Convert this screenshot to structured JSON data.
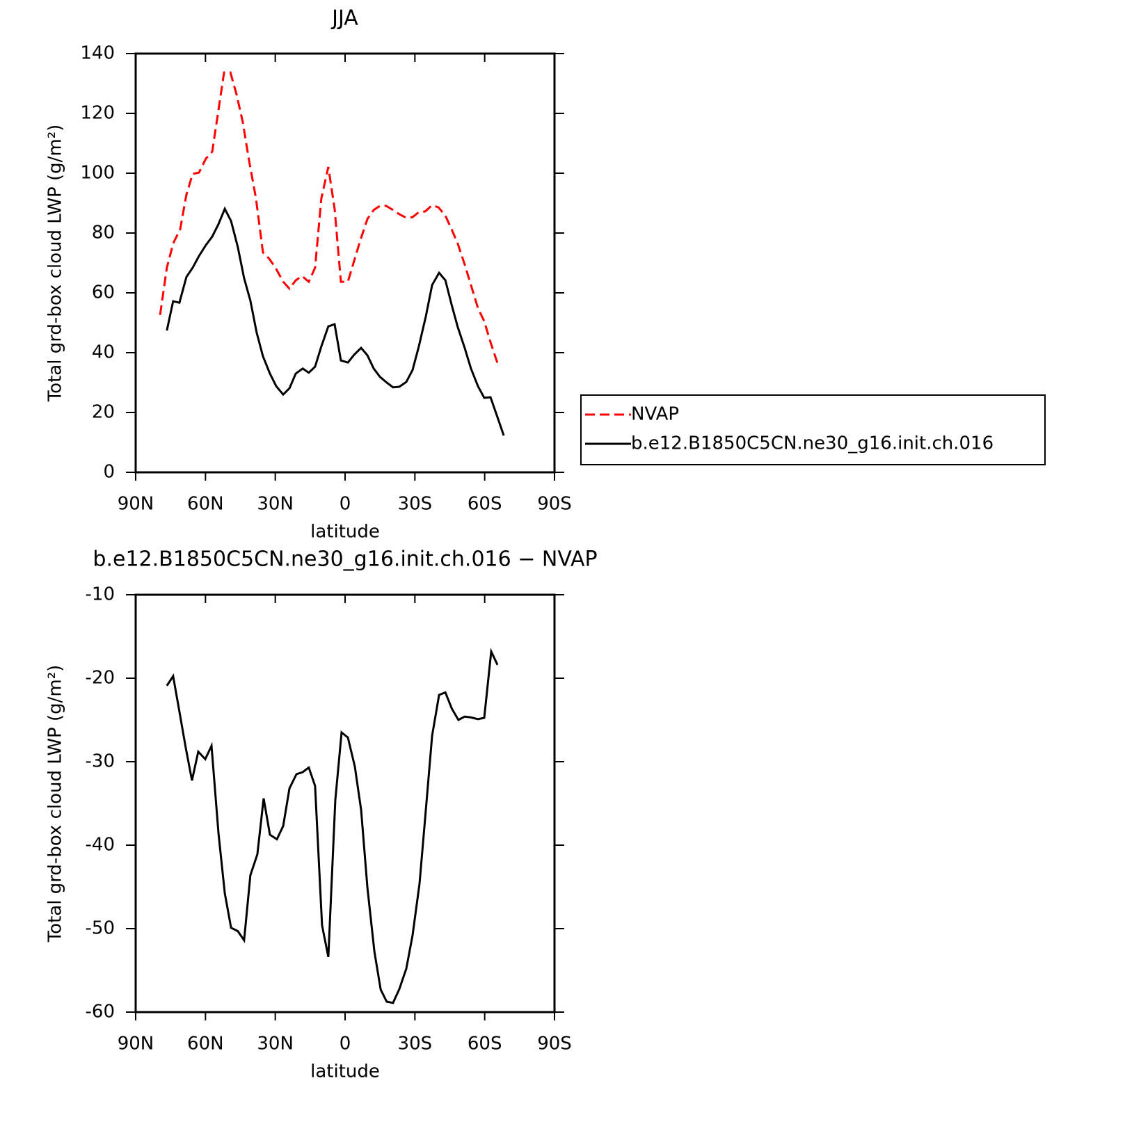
{
  "chart_data": [
    {
      "type": "line",
      "title": "JJA",
      "xlabel": "latitude",
      "ylabel": "Total grd-box cloud LWP (g/m²)",
      "xlim": [
        90,
        -90
      ],
      "xticks": [
        {
          "value": 90,
          "label": "90N"
        },
        {
          "value": 60,
          "label": "60N"
        },
        {
          "value": 30,
          "label": "30N"
        },
        0,
        {
          "value": -30,
          "label": "30S"
        },
        {
          "value": -60,
          "label": "60S"
        },
        {
          "value": -90,
          "label": "90S"
        }
      ],
      "ylim": [
        0,
        140
      ],
      "yticks": [
        0,
        20,
        40,
        60,
        80,
        100,
        120,
        140
      ],
      "legend": "right",
      "series": [
        {
          "name": "NVAP",
          "color": "#ff0000",
          "line_style": "dashed",
          "x": [
            79.5,
            76.6,
            73.9,
            70.9,
            68.2,
            65.5,
            62.8,
            59.8,
            57.1,
            54.4,
            52,
            49.3,
            46.7,
            44,
            41.3,
            38.3,
            35.3,
            32.6,
            29.9,
            26.6,
            23.9,
            21.2,
            18.5,
            15.6,
            12.9,
            10.2,
            7.2,
            4.5,
            1.8,
            -1.2,
            -3.9,
            -6.6,
            -9.6,
            -12.3,
            -15,
            -17.6,
            -20.6,
            -23.3,
            -26.3,
            -29,
            -31.7,
            -34.4,
            -37.4,
            -40.1,
            -43.1,
            -45.8,
            -48.4,
            -51.4,
            -54.1,
            -57.1,
            -59.8,
            -62.5,
            -65.5
          ],
          "values": [
            52.6,
            68.4,
            76.5,
            81.2,
            92.8,
            99.8,
            100.2,
            104.9,
            107.2,
            121.2,
            133.7,
            133.7,
            126.5,
            117.2,
            104.4,
            91.6,
            73.5,
            71.4,
            68.4,
            63.7,
            61.4,
            64.2,
            65.6,
            63.7,
            68.4,
            91.6,
            102.1,
            88.1,
            63.7,
            63.7,
            70.7,
            77.7,
            84.7,
            87.7,
            89.1,
            89.1,
            87.7,
            86.3,
            85.1,
            85.3,
            87,
            87.2,
            89.3,
            88.6,
            85.8,
            81.2,
            76.5,
            69.5,
            62.6,
            54.9,
            50.5,
            43.5,
            36.5
          ]
        },
        {
          "name": "b.e12.B1850C5CN.ne30_g16.init.ch.016",
          "color": "#000000",
          "line_style": "solid",
          "x": [
            76.6,
            73.9,
            71.2,
            68.2,
            65.5,
            62.8,
            59.8,
            57.1,
            54.4,
            51.7,
            49,
            46.1,
            43.4,
            40.7,
            38,
            35.3,
            32.3,
            29.6,
            26.6,
            23.9,
            21.2,
            18.2,
            15.6,
            12.9,
            10.2,
            7.2,
            4.5,
            1.8,
            -1.2,
            -3.9,
            -6.9,
            -9.6,
            -12.3,
            -15,
            -17.9,
            -20.6,
            -23.3,
            -26.3,
            -29,
            -31.7,
            -34.7,
            -37.4,
            -40.4,
            -43.1,
            -45.8,
            -48.4,
            -51.4,
            -54.1,
            -57.1,
            -59.8,
            -62.5,
            -65.5,
            -68.2
          ],
          "values": [
            47.4,
            57.2,
            56.7,
            65.3,
            68.4,
            72.3,
            76,
            78.8,
            83,
            88.1,
            84,
            75.3,
            64.9,
            57.4,
            46.7,
            38.8,
            33,
            28.8,
            26,
            28.1,
            33,
            34.7,
            33.3,
            35.3,
            42.1,
            48.8,
            49.5,
            37.4,
            36.7,
            39.3,
            41.6,
            39.1,
            34.7,
            31.9,
            30,
            28.4,
            28.6,
            30.2,
            34.2,
            42.1,
            52.1,
            62.6,
            66.7,
            64.2,
            56,
            48.6,
            41.6,
            34.7,
            28.8,
            24.9,
            25.1,
            18.4,
            12.3
          ]
        }
      ]
    },
    {
      "type": "line",
      "title": "b.e12.B1850C5CN.ne30_g16.init.ch.016 − NVAP",
      "xlabel": "latitude",
      "ylabel": "Total grd-box cloud LWP (g/m²)",
      "xlim": [
        90,
        -90
      ],
      "xticks": [
        {
          "value": 90,
          "label": "90N"
        },
        {
          "value": 60,
          "label": "60N"
        },
        {
          "value": 30,
          "label": "30N"
        },
        0,
        {
          "value": -30,
          "label": "30S"
        },
        {
          "value": -60,
          "label": "60S"
        },
        {
          "value": -90,
          "label": "90S"
        }
      ],
      "ylim": [
        -60,
        -10
      ],
      "yticks": [
        -60,
        -50,
        -40,
        -30,
        -20,
        -10
      ],
      "series": [
        {
          "color": "#000000",
          "line_style": "solid",
          "x": [
            76.6,
            73.9,
            71.2,
            68.5,
            65.8,
            63.1,
            60.1,
            57.4,
            54.4,
            51.7,
            49,
            46.1,
            43.4,
            40.7,
            37.7,
            35,
            32.3,
            29.3,
            26.6,
            23.9,
            20.9,
            18.2,
            15.6,
            12.9,
            9.9,
            7.2,
            4.2,
            1.5,
            -1.2,
            -4.2,
            -6.9,
            -9.6,
            -12.6,
            -15.3,
            -17.9,
            -20.6,
            -23.3,
            -26.3,
            -29,
            -32,
            -34.7,
            -37.4,
            -40.4,
            -43.1,
            -45.8,
            -48.7,
            -51.4,
            -54.1,
            -57.1,
            -59.8,
            -62.8,
            -65.5
          ],
          "values": [
            -20.9,
            -19.75,
            -24,
            -28.3,
            -32.25,
            -28.8,
            -29.7,
            -28.1,
            -38.6,
            -45.75,
            -49.9,
            -50.3,
            -51.4,
            -43.6,
            -41.1,
            -34.4,
            -38.75,
            -39.3,
            -37.7,
            -33.2,
            -31.5,
            -31.25,
            -30.7,
            -32.9,
            -49.6,
            -53.4,
            -34.6,
            -26.5,
            -27.1,
            -30.6,
            -35.8,
            -45.1,
            -52.75,
            -57.3,
            -58.75,
            -58.9,
            -57.25,
            -54.8,
            -50.8,
            -44.6,
            -35.8,
            -26.9,
            -22,
            -21.7,
            -23.6,
            -25,
            -24.6,
            -24.7,
            -24.9,
            -24.75,
            -16.8,
            -18.4
          ]
        }
      ]
    }
  ]
}
